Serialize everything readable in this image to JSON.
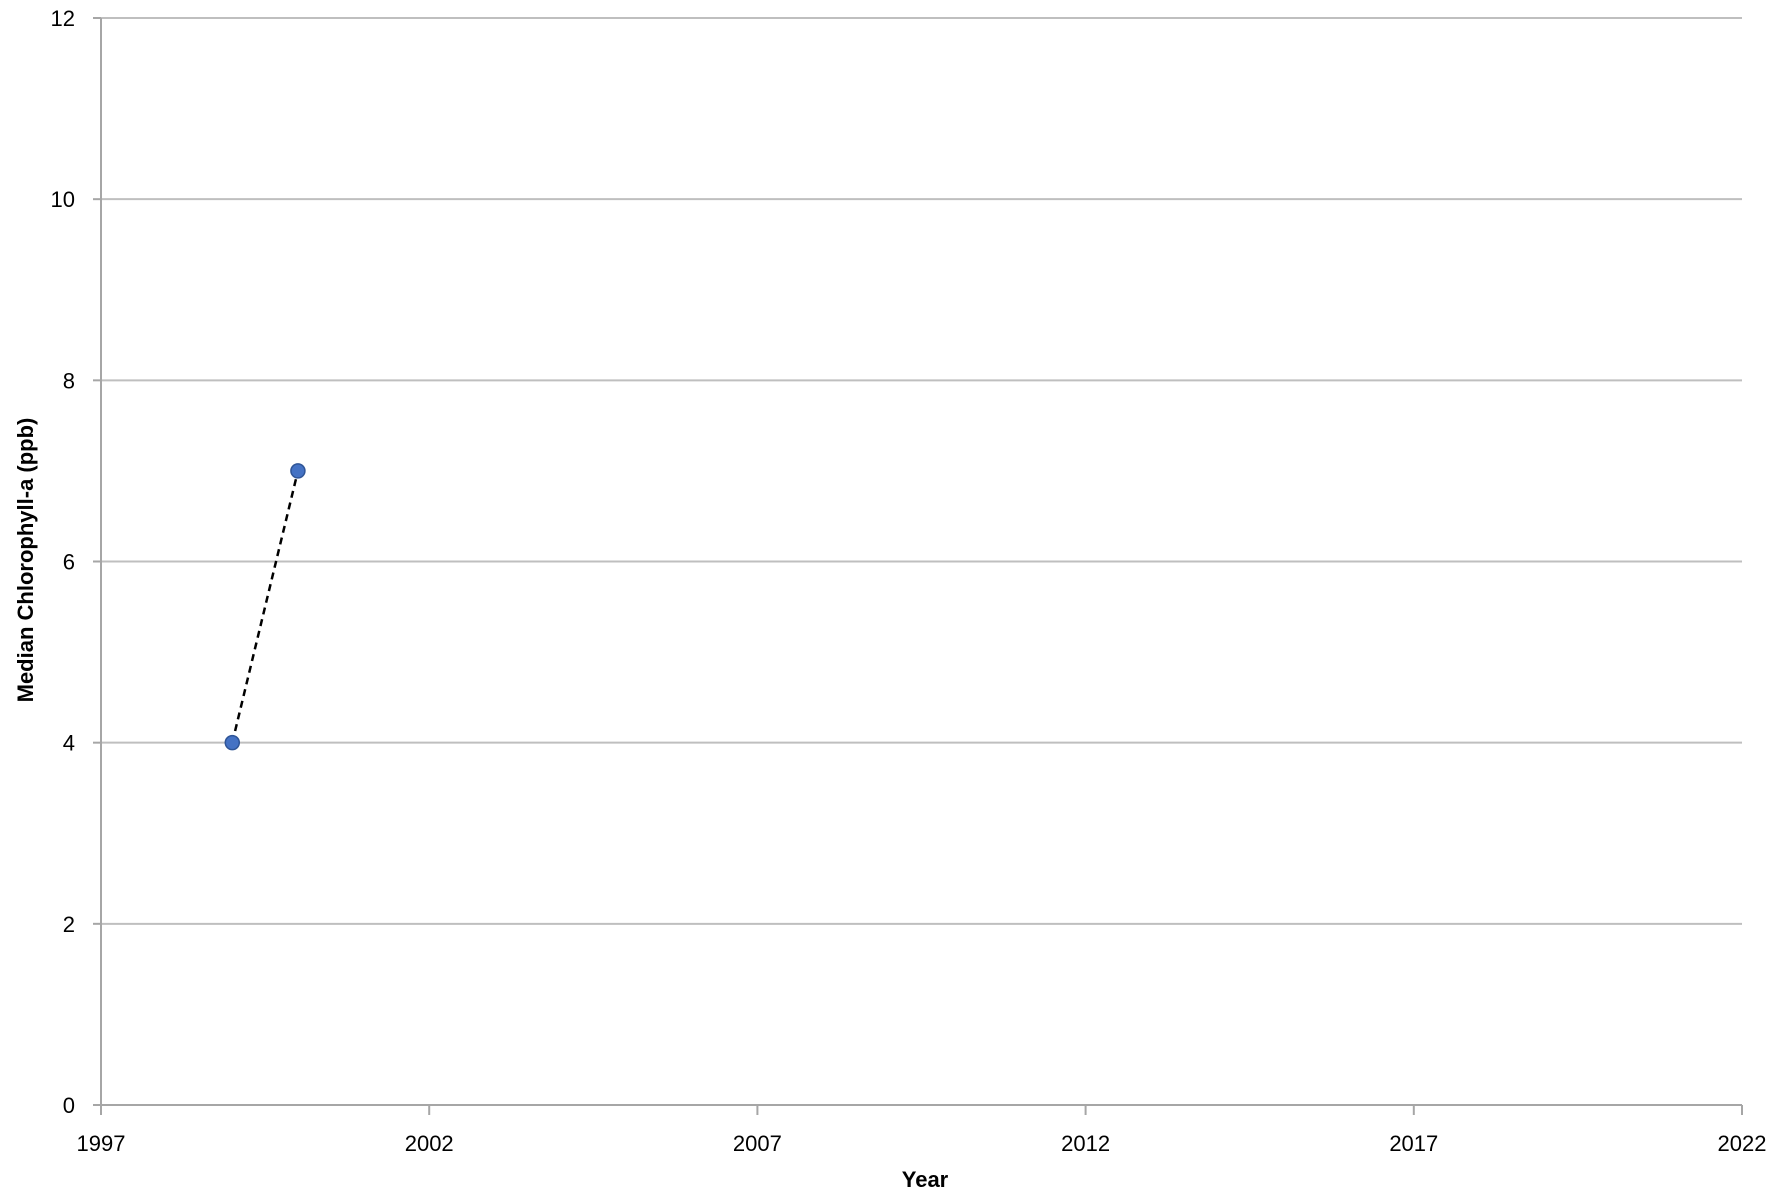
{
  "chart_data": {
    "type": "scatter",
    "title": "",
    "xlabel": "Year",
    "ylabel": "Median Chlorophyll-a (ppb)",
    "xlim": [
      1997,
      2022
    ],
    "ylim": [
      0,
      12
    ],
    "xticks": [
      1997,
      2002,
      2007,
      2012,
      2017,
      2022
    ],
    "yticks": [
      0,
      2,
      4,
      6,
      8,
      10,
      12
    ],
    "grid": "horizontal",
    "legend": "none",
    "series": [
      {
        "x": [
          1999,
          2000
        ],
        "y": [
          4,
          7
        ],
        "marker_color": "#4472C4",
        "line_color": "#000000",
        "line_style": "dashed"
      }
    ],
    "colors": {
      "gridline": "#bfbfbf",
      "axis": "#a6a6a6"
    }
  }
}
